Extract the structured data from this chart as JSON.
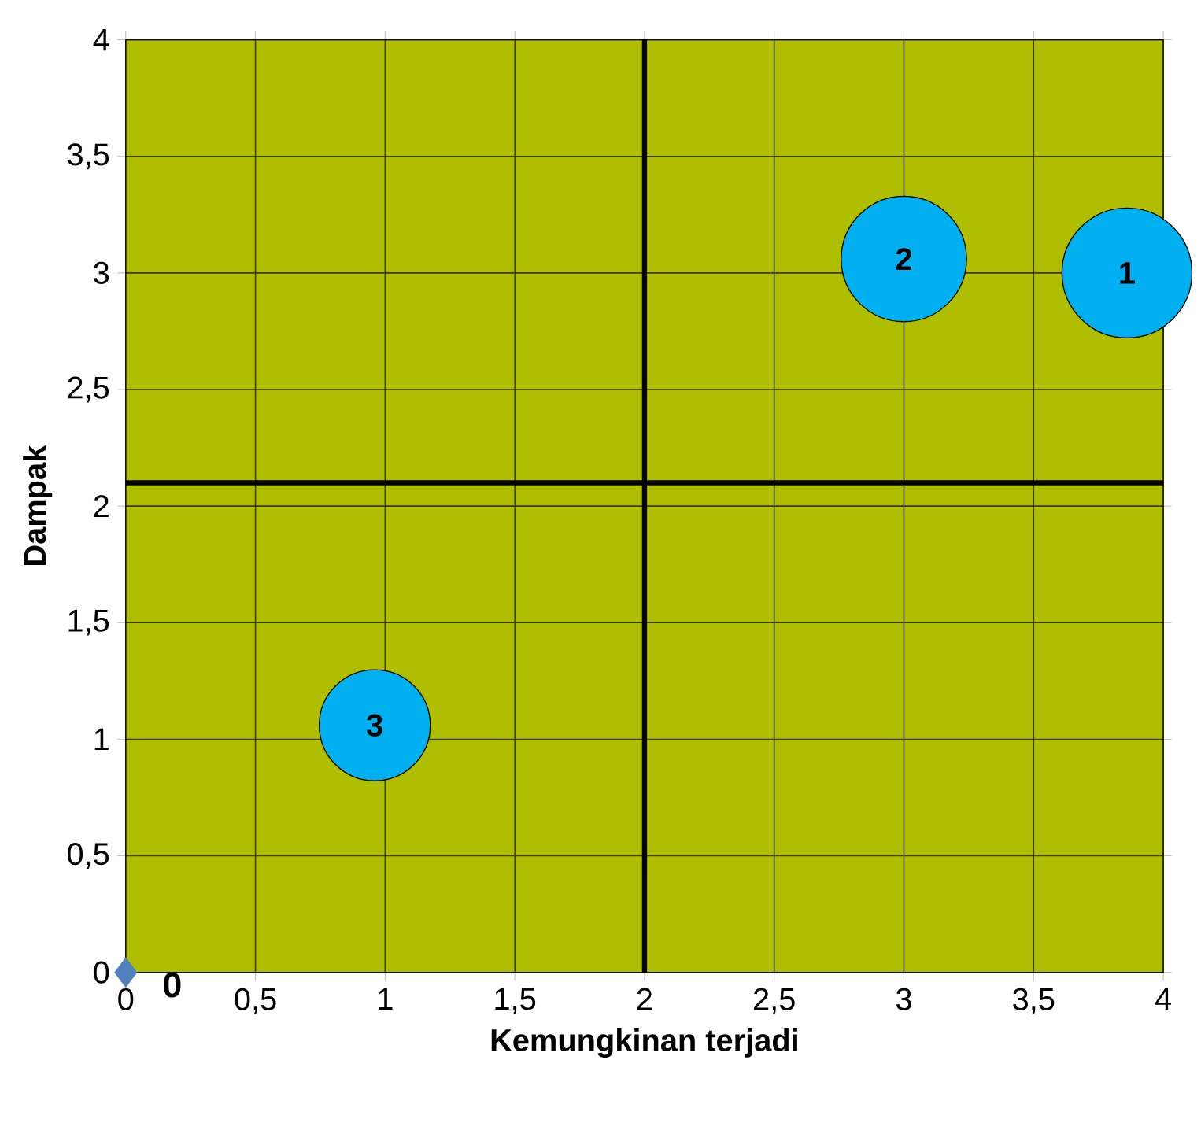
{
  "chart_data": {
    "type": "scatter",
    "xlabel": "Kemungkinan terjadi",
    "ylabel": "Dampak",
    "xlim": [
      0,
      4
    ],
    "ylim": [
      0,
      4
    ],
    "xticks": [
      0,
      {
        "value": 0.5,
        "label": "0,5"
      },
      1,
      {
        "value": 1.5,
        "label": "1,5"
      },
      2,
      {
        "value": 2.5,
        "label": "2,5"
      },
      3,
      {
        "value": 3.5,
        "label": "3,5"
      },
      4
    ],
    "yticks": [
      0,
      {
        "value": 0.5,
        "label": "0,5"
      },
      1,
      {
        "value": 1.5,
        "label": "1,5"
      },
      2,
      {
        "value": 2.5,
        "label": "2,5"
      },
      3,
      {
        "value": 3.5,
        "label": "3,5"
      },
      4
    ],
    "grid": true,
    "ref_lines": [
      {
        "axis": "x",
        "value": 2,
        "color": "#000000"
      },
      {
        "axis": "y",
        "value": 2.1,
        "color": "#000000"
      }
    ],
    "series": [
      {
        "marker": "diamond",
        "color": "#4f81bd",
        "x": [
          0
        ],
        "values": [
          0
        ],
        "value_labels": [
          "0"
        ]
      },
      {
        "type": "bubble",
        "marker": "circle",
        "color": "#00b0f0",
        "x": [
          3.86,
          3.0,
          0.96
        ],
        "values": [
          3.0,
          3.06,
          1.06
        ],
        "sizes": [
          1,
          0.93,
          0.73
        ]
      }
    ],
    "annotations": [
      {
        "text": "1",
        "x": 3.86,
        "y": 3.0
      },
      {
        "text": "2",
        "x": 3.0,
        "y": 3.06
      },
      {
        "text": "3",
        "x": 0.96,
        "y": 1.06
      }
    ]
  }
}
